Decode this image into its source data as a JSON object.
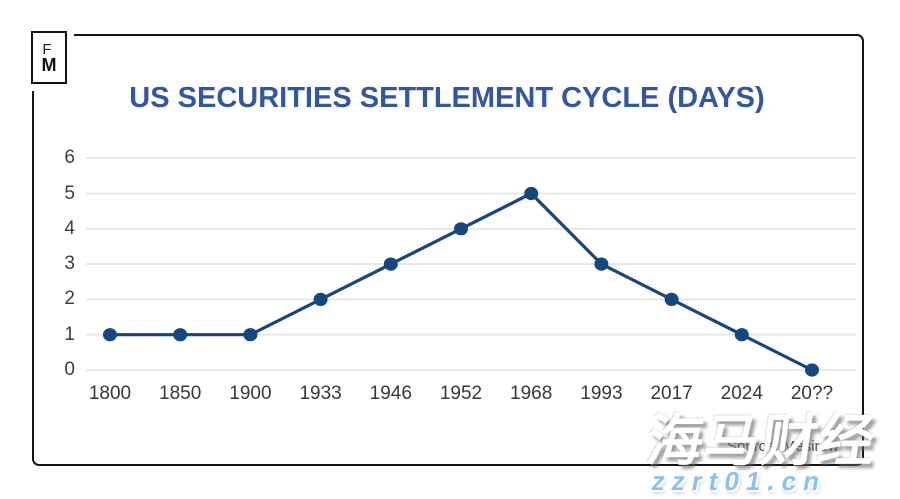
{
  "logo": {
    "top": "F",
    "bottom": "M"
  },
  "title": "US SECURITIES SETTLEMENT CYCLE (DAYS)",
  "source_note": "Source: Mesirow",
  "watermarks": {
    "site_name": "海马财经",
    "site_url": "zzrt01.cn"
  },
  "chart_data": {
    "type": "line",
    "title": "US SECURITIES SETTLEMENT CYCLE (DAYS)",
    "categories": [
      "1800",
      "1850",
      "1900",
      "1933",
      "1946",
      "1952",
      "1968",
      "1993",
      "2017",
      "2024",
      "20??"
    ],
    "values": [
      1,
      1,
      1,
      2,
      3,
      4,
      5,
      3,
      2,
      1,
      0
    ],
    "xlabel": "",
    "ylabel": "",
    "ylim": [
      0,
      6
    ],
    "yticks": [
      6,
      5,
      4,
      3,
      2,
      1,
      0
    ],
    "grid": true,
    "legend_position": "none",
    "line_color": "#15467e",
    "marker": "circle",
    "marker_color": "#15467e",
    "gridline_color": "#e4e4e7",
    "tick_label_color": "#3d3d3d"
  }
}
